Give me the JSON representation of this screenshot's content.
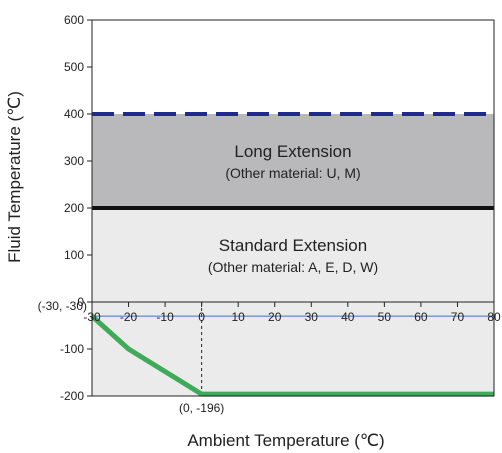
{
  "chart_data": {
    "type": "area",
    "xlabel": "Ambient Temperature (℃)",
    "ylabel": "Fluid Temperature (℃)",
    "xlim": [
      -30,
      80
    ],
    "ylim": [
      -200,
      600
    ],
    "x_ticks": [
      "-30",
      "-20",
      "-10",
      "0",
      "10",
      "20",
      "30",
      "40",
      "50",
      "60",
      "70",
      "80"
    ],
    "y_ticks": [
      "600",
      "500",
      "400",
      "300",
      "200",
      "100",
      "0",
      "-100",
      "-200"
    ],
    "regions": [
      {
        "name": "Long Extension",
        "subtitle": "(Other material: U, M)",
        "y_from": 200,
        "y_to": 400,
        "color": "#b9b9bb"
      },
      {
        "name": "Standard Extension",
        "subtitle": "(Other material: A, E, D, W)",
        "y_from": 0,
        "y_to": 200,
        "color": "#ebebec"
      }
    ],
    "series": [
      {
        "style": "dashed",
        "color": "#1e2a8c",
        "points": [
          [
            -30,
            400
          ],
          [
            80,
            400
          ]
        ]
      },
      {
        "style": "solid",
        "color": "#111111",
        "points": [
          [
            -30,
            200
          ],
          [
            80,
            200
          ]
        ]
      },
      {
        "style": "solid",
        "color": "#3c6fd0",
        "points": [
          [
            -30,
            -30
          ],
          [
            80,
            -30
          ]
        ]
      },
      {
        "style": "solid",
        "color": "#3faa5a",
        "points": [
          [
            -30,
            -30
          ],
          [
            -20,
            -100
          ],
          [
            0,
            -196
          ],
          [
            80,
            -196
          ]
        ]
      }
    ],
    "annotations": [
      {
        "text": "(-30, -30)",
        "x": -30,
        "y": -30
      },
      {
        "text": "(0, -196)",
        "x": 0,
        "y": -196
      }
    ],
    "grid": false
  }
}
